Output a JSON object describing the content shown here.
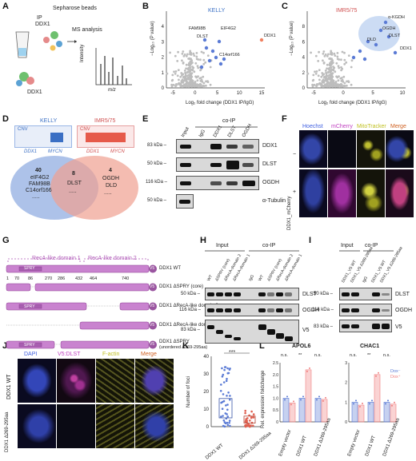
{
  "letters": [
    "A",
    "B",
    "C",
    "D",
    "E",
    "F",
    "G",
    "H",
    "I",
    "J",
    "K",
    "L"
  ],
  "A": {
    "ip_label": "IP",
    "ip_target": "DDX1",
    "beads": "Sepharose beads",
    "ms": "MS analysis",
    "intensity": "Intensity",
    "mz": "m/z",
    "protein": "DDX1"
  },
  "B": {
    "title": "KELLY",
    "xlabel": "Log₂ fold change (DDX1 IP/IgG)",
    "ylabel": "−Log₁₀ (P value)",
    "labels": [
      "FAM98B",
      "DLST",
      "EIF4G2",
      "C14orf166",
      "DDX1"
    ],
    "xticks": [
      "-5",
      "0",
      "5",
      "10",
      "15"
    ],
    "yticks": [
      "0",
      "1",
      "2",
      "3",
      "4"
    ]
  },
  "C": {
    "title": "IMR5/75",
    "xlabel": "Log₂ fold change (DDX1 IP/IgG)",
    "ylabel": "−Log₁₀ (P value)",
    "labels": [
      "α-KGDH",
      "OGDH",
      "DLST",
      "DLD",
      "DDX1"
    ],
    "xticks": [
      "-5",
      "0",
      "5",
      "10"
    ],
    "yticks": [
      "0",
      "2",
      "4",
      "6",
      "8"
    ]
  },
  "D": {
    "kelly": "KELLY",
    "imr": "IMR5/75",
    "cnv": "CNV",
    "genes": [
      "DDX1",
      "MYCN"
    ],
    "left_count": "40",
    "left_genes": [
      "eIF4G2",
      "FAM98B",
      "C14orf166"
    ],
    "mid_count": "8",
    "mid_genes": [
      "DLST"
    ],
    "right_count": "4",
    "right_genes": [
      "OGDH",
      "DLD"
    ],
    "dots": "....."
  },
  "E": {
    "coip": "co-IP",
    "cols": [
      "Input",
      "IgG",
      "DDX1",
      "DLST",
      "OGDH"
    ],
    "kda": [
      "83 kDa –",
      "50 kDa –",
      "116 kDa –",
      "50 kDa –"
    ],
    "rows": [
      "DDX1",
      "DLST",
      "OGDH",
      "α-Tubulin"
    ]
  },
  "F": {
    "headers": [
      "Hoechst",
      "mCherry",
      "MitoTracker",
      "Merge"
    ],
    "side": "DDX1_mCherry",
    "minus": "−",
    "plus": "+"
  },
  "G": {
    "domain1": "RecA-like domain 1",
    "domain2": "RecA-like domain 2",
    "positions": [
      "1",
      "70",
      "86",
      "270",
      "286",
      "432",
      "464",
      "740"
    ],
    "spry": "SPRY",
    "v5": "V5",
    "constructs": [
      "DDX1 WT",
      "DDX1 ΔSPRY (core)",
      "DDX1 ΔRecA-like domain 2",
      "DDX1 ΔRecA-like domain 1",
      "DDX1 ΔSPRY",
      "(unordered Δ269-295aa)"
    ]
  },
  "H": {
    "input": "Input",
    "coip": "co-IP",
    "cols": [
      "WT",
      "ΔSPRY (core)",
      "ΔRecA-domain 2",
      "ΔRecA-domain 1",
      "IgG",
      "WT",
      "ΔSPRY (core)",
      "ΔRecA-domain 2",
      "ΔRecA-domain 1"
    ],
    "kda": [
      "50 kDa –",
      "116 kDa –",
      "83 kDa –"
    ],
    "rows": [
      "DLST",
      "OGDH",
      "V5"
    ]
  },
  "I": {
    "input": "Input",
    "coip": "co-IP",
    "cols": [
      "DDX1_V5 WT",
      "DDX1_V5 Δ269-295aa",
      "IgG",
      "DDX1_V5 WT",
      "DDX1_V5 Δ269-295aa"
    ],
    "kda": [
      "50 kDa –",
      "116 kDa –",
      "83 kDa –"
    ],
    "rows": [
      "DLST",
      "OGDH",
      "V5"
    ]
  },
  "J": {
    "headers": [
      "DAPI",
      "V5:DLST",
      "F-actin",
      "Merge"
    ],
    "rows": [
      "DDX1 WT",
      "DDX1 Δ269-295aa"
    ]
  },
  "K": {
    "ylabel": "Number of foci",
    "sig": "***",
    "yticks": [
      "0",
      "10",
      "20",
      "30",
      "40"
    ],
    "xcats": [
      "DDX1 WT",
      "DDX1 Δ269-295aa"
    ]
  },
  "L": {
    "titles": [
      "APOL6",
      "CHAC1"
    ],
    "ylabel": "Rel. expression foldchange",
    "yticks": [
      "0",
      "0.5",
      "1.0",
      "1.5",
      "2.0",
      "2.5"
    ],
    "yticks2": [
      "0",
      "1",
      "2",
      "3"
    ],
    "xcats": [
      "Empty vector",
      "DDX1 WT",
      "DDX1 Δ269-295aa"
    ],
    "sig": [
      "n.s.",
      "**",
      "n.s."
    ],
    "legend": [
      "Dox⁻",
      "Dox⁺"
    ],
    "colors": {
      "dox_minus": "#5b7bd5",
      "dox_plus": "#f08080"
    }
  },
  "chart_data": [
    {
      "type": "bar",
      "title": "APOL6",
      "categories": [
        "Empty vector",
        "DDX1 WT",
        "DDX1 Δ269-295aa"
      ],
      "series": [
        {
          "name": "Dox⁻",
          "values": [
            1.0,
            1.0,
            1.0
          ]
        },
        {
          "name": "Dox⁺",
          "values": [
            0.8,
            2.2,
            0.95
          ]
        }
      ],
      "ylabel": "Rel. expression foldchange",
      "ylim": [
        0,
        2.5
      ]
    },
    {
      "type": "bar",
      "title": "CHAC1",
      "categories": [
        "Empty vector",
        "DDX1 WT",
        "DDX1 Δ269-295aa"
      ],
      "series": [
        {
          "name": "Dox⁻",
          "values": [
            1.0,
            1.0,
            1.0
          ]
        },
        {
          "name": "Dox⁺",
          "values": [
            0.85,
            2.4,
            0.9
          ]
        }
      ],
      "ylabel": "Rel. expression foldchange",
      "ylim": [
        0,
        3
      ]
    },
    {
      "type": "scatter",
      "categories": [
        "DDX1 WT",
        "DDX1 Δ269-295aa"
      ],
      "ylabel": "Number of foci",
      "ylim": [
        0,
        40
      ],
      "series": [
        {
          "values": [
            12,
            4
          ]
        }
      ]
    }
  ]
}
